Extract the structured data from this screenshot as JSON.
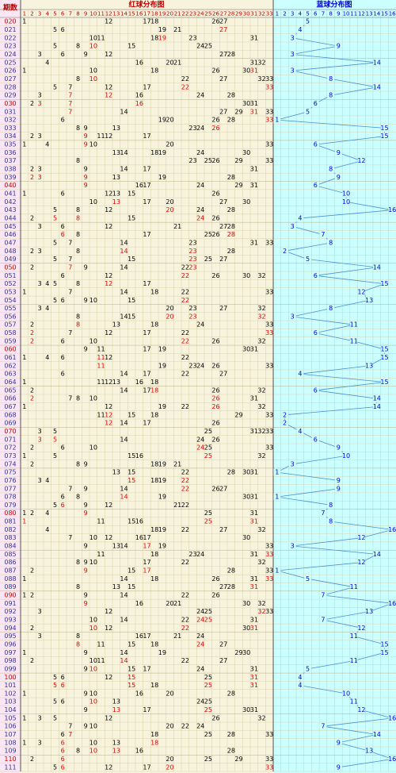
{
  "chart_data": {
    "type": "lottery-grid",
    "period_header": "期数",
    "red_title": "红球分布图",
    "blue_title": "蓝球分布图",
    "red_columns": [
      1,
      2,
      3,
      4,
      5,
      6,
      7,
      8,
      9,
      10,
      11,
      12,
      13,
      14,
      15,
      16,
      17,
      18,
      19,
      20,
      21,
      22,
      23,
      24,
      25,
      26,
      27,
      28,
      29,
      30,
      31,
      32,
      33
    ],
    "blue_columns": [
      1,
      2,
      3,
      4,
      5,
      6,
      7,
      8,
      9,
      10,
      11,
      12,
      13,
      14,
      15,
      16
    ],
    "periods": [
      "020",
      "021",
      "022",
      "023",
      "024",
      "025",
      "026",
      "027",
      "028",
      "029",
      "030",
      "031",
      "032",
      "033",
      "034",
      "035",
      "036",
      "037",
      "038",
      "039",
      "040",
      "041",
      "042",
      "043",
      "044",
      "045",
      "046",
      "047",
      "048",
      "049",
      "050",
      "051",
      "052",
      "053",
      "054",
      "055",
      "056",
      "057",
      "058",
      "059",
      "060",
      "061",
      "062",
      "063",
      "064",
      "065",
      "066",
      "067",
      "068",
      "069",
      "070",
      "071",
      "072",
      "073",
      "074",
      "075",
      "076",
      "077",
      "078",
      "079",
      "080",
      "081",
      "082",
      "083",
      "084",
      "085",
      "086",
      "087",
      "088",
      "089",
      "090",
      "091",
      "092",
      "093",
      "094",
      "095",
      "096",
      "097",
      "098",
      "099",
      "100",
      "101",
      "102",
      "103",
      "104",
      "105",
      "106",
      "107",
      "108",
      "109",
      "110",
      "111"
    ],
    "red": [
      [
        1,
        12,
        17,
        18,
        26,
        27
      ],
      [
        5,
        6,
        19,
        21,
        27
      ],
      [
        10,
        11,
        18,
        19,
        23,
        31
      ],
      [
        5,
        8,
        10,
        15,
        24,
        25
      ],
      [
        3,
        6,
        9,
        12,
        27,
        28
      ],
      [
        4,
        16,
        20,
        21,
        31,
        32
      ],
      [
        1,
        10,
        18,
        26,
        30,
        31
      ],
      [
        8,
        10,
        22,
        27,
        32,
        33
      ],
      [
        5,
        7,
        12,
        17,
        22,
        33
      ],
      [
        3,
        7,
        12,
        16,
        24,
        28
      ],
      [
        2,
        3,
        7,
        16,
        30,
        31
      ],
      [
        7,
        14,
        27,
        29,
        31,
        33
      ],
      [
        6,
        19,
        20,
        26,
        28,
        33
      ],
      [
        8,
        9,
        13,
        23,
        24,
        26
      ],
      [
        2,
        3,
        9,
        11,
        12,
        17
      ],
      [
        1,
        4,
        9,
        10,
        20,
        33
      ],
      [
        13,
        14,
        18,
        19,
        24,
        30
      ],
      [
        8,
        23,
        25,
        26,
        29,
        33
      ],
      [
        2,
        3,
        9,
        14,
        17,
        31
      ],
      [
        2,
        3,
        9,
        13,
        19,
        28
      ],
      [
        9,
        16,
        17,
        24,
        29,
        31
      ],
      [
        1,
        6,
        12,
        13,
        15,
        26
      ],
      [
        10,
        13,
        17,
        20,
        27,
        30
      ],
      [
        5,
        8,
        12,
        20,
        24,
        28
      ],
      [
        2,
        5,
        8,
        15,
        24,
        26
      ],
      [
        3,
        6,
        12,
        21,
        27,
        28
      ],
      [
        6,
        8,
        17,
        25,
        26,
        28
      ],
      [
        5,
        7,
        14,
        23,
        31,
        33
      ],
      [
        2,
        3,
        8,
        14,
        23,
        28
      ],
      [
        5,
        7,
        15,
        23,
        25,
        27
      ],
      [
        2,
        7,
        9,
        14,
        22,
        23
      ],
      [
        6,
        12,
        22,
        26,
        30,
        32
      ],
      [
        3,
        4,
        5,
        8,
        12,
        17
      ],
      [
        1,
        7,
        14,
        18,
        22,
        33
      ],
      [
        5,
        6,
        9,
        10,
        15,
        22
      ],
      [
        3,
        4,
        20,
        23,
        27,
        32
      ],
      [
        8,
        14,
        15,
        20,
        23,
        32
      ],
      [
        2,
        8,
        13,
        18,
        24,
        33
      ],
      [
        2,
        7,
        12,
        17,
        22,
        33
      ],
      [
        2,
        6,
        10,
        22,
        26,
        32
      ],
      [
        9,
        11,
        17,
        19,
        30,
        31
      ],
      [
        1,
        4,
        6,
        11,
        12,
        22
      ],
      [
        11,
        19,
        23,
        24,
        26,
        33
      ],
      [
        6,
        14,
        17,
        22,
        27
      ],
      [
        1,
        11,
        12,
        13,
        16,
        18
      ],
      [
        2,
        14,
        17,
        18,
        26,
        32
      ],
      [
        2,
        7,
        8,
        10,
        26,
        31
      ],
      [
        1,
        12,
        19,
        22,
        26,
        32
      ],
      [
        11,
        12,
        15,
        18,
        29,
        33
      ],
      [
        12,
        14,
        17,
        26
      ],
      [
        3,
        5,
        25,
        31,
        32,
        33
      ],
      [
        3,
        5,
        14,
        24,
        26
      ],
      [
        2,
        6,
        10,
        24,
        25,
        33
      ],
      [
        1,
        5,
        15,
        16,
        25,
        32
      ],
      [
        2,
        8,
        9,
        18,
        19,
        21
      ],
      [
        13,
        15,
        22,
        28,
        30,
        31
      ],
      [
        3,
        4,
        15,
        18,
        19,
        22
      ],
      [
        7,
        9,
        14,
        22,
        26,
        27
      ],
      [
        6,
        8,
        14,
        19,
        30,
        31
      ],
      [
        5,
        6,
        9,
        12,
        21,
        22
      ],
      [
        1,
        2,
        4,
        9,
        25,
        31
      ],
      [
        1,
        11,
        15,
        16,
        25,
        31
      ],
      [
        4,
        18,
        19,
        22,
        27,
        32
      ],
      [
        7,
        10,
        12,
        16,
        17,
        30
      ],
      [
        9,
        13,
        14,
        17,
        19,
        33
      ],
      [
        11,
        18,
        23,
        24,
        31,
        33
      ],
      [
        8,
        9,
        10,
        17,
        22,
        32
      ],
      [
        2,
        9,
        15,
        17,
        28,
        33
      ],
      [
        1,
        14,
        18,
        26,
        31,
        33
      ],
      [
        8,
        13,
        15,
        27,
        28,
        31
      ],
      [
        1,
        2,
        9,
        14,
        22,
        26
      ],
      [
        9,
        16,
        20,
        21,
        30,
        32
      ],
      [
        3,
        12,
        24,
        25,
        32,
        33
      ],
      [
        10,
        14,
        22,
        24,
        25,
        31
      ],
      [
        2,
        10,
        12,
        22,
        30,
        31
      ],
      [
        3,
        8,
        16,
        17,
        21,
        24
      ],
      [
        8,
        11,
        15,
        18,
        24,
        27
      ],
      [
        1,
        9,
        14,
        19,
        29,
        30
      ],
      [
        2,
        10,
        11,
        14,
        22,
        27
      ],
      [
        9,
        10,
        15,
        17,
        24,
        31
      ],
      [
        5,
        6,
        12,
        15,
        25,
        31
      ],
      [
        5,
        6,
        15,
        18,
        25,
        31
      ],
      [
        1,
        9,
        10,
        16,
        20,
        28
      ],
      [
        5,
        6,
        10,
        13,
        24,
        25
      ],
      [
        9,
        13,
        17,
        25,
        30,
        31
      ],
      [
        1,
        3,
        5,
        12,
        26,
        32
      ],
      [
        7,
        9,
        10,
        20,
        22,
        24
      ],
      [
        6,
        7,
        18,
        25,
        28,
        33
      ],
      [
        1,
        3,
        6,
        10,
        13,
        18
      ],
      [
        6,
        8,
        10,
        13,
        16,
        28
      ],
      [
        2,
        6,
        20,
        25,
        29,
        33
      ],
      [
        5,
        6,
        12,
        17,
        20,
        33
      ]
    ],
    "blue": [
      5,
      4,
      3,
      9,
      3,
      14,
      3,
      8,
      14,
      8,
      6,
      5,
      1,
      15,
      15,
      6,
      9,
      12,
      8,
      9,
      6,
      10,
      10,
      16,
      4,
      3,
      7,
      8,
      2,
      5,
      14,
      6,
      15,
      12,
      13,
      8,
      3,
      11,
      6,
      11,
      15,
      15,
      13,
      4,
      15,
      6,
      14,
      14,
      2,
      2,
      4,
      6,
      9,
      10,
      3,
      1,
      9,
      9,
      1,
      8,
      7,
      8,
      16,
      12,
      3,
      14,
      12,
      1,
      5,
      11,
      7,
      16,
      13,
      7,
      12,
      11,
      15,
      15,
      11,
      5,
      4,
      4,
      10,
      11,
      12,
      16,
      7,
      14,
      9,
      13,
      16,
      9
    ],
    "red_color": "#e00000",
    "blue_color": "#0000dd",
    "line_color": "#4a8fd8"
  }
}
